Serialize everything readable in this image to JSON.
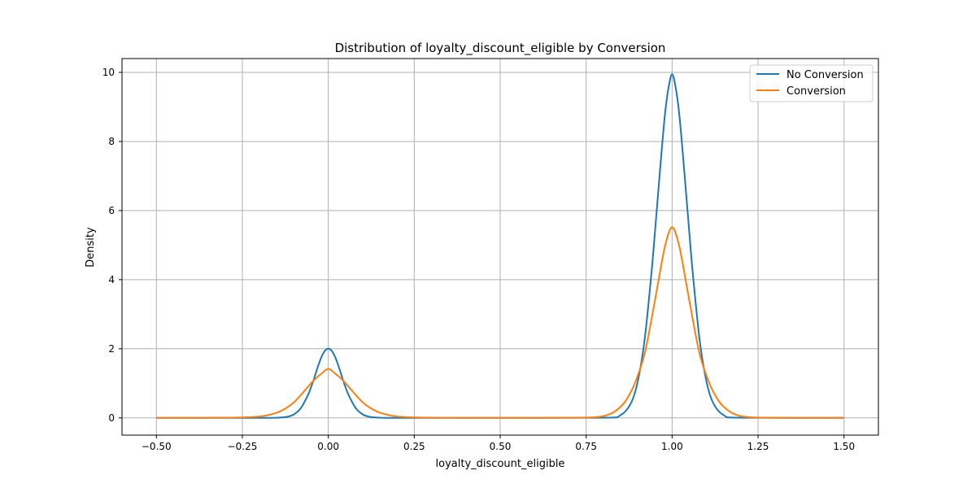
{
  "chart_data": {
    "type": "line",
    "title": "Distribution of loyalty_discount_eligible by Conversion",
    "xlabel": "loyalty_discount_eligible",
    "ylabel": "Density",
    "xlim": [
      -0.6,
      1.6
    ],
    "ylim": [
      -0.5,
      10.4
    ],
    "xticks": [
      -0.5,
      -0.25,
      0.0,
      0.25,
      0.5,
      0.75,
      1.0,
      1.25,
      1.5
    ],
    "xtick_labels": [
      "−0.50",
      "−0.25",
      "0.00",
      "0.25",
      "0.50",
      "0.75",
      "1.00",
      "1.25",
      "1.50"
    ],
    "yticks": [
      0,
      2,
      4,
      6,
      8,
      10
    ],
    "ytick_labels": [
      "0",
      "2",
      "4",
      "6",
      "8",
      "10"
    ],
    "grid": true,
    "legend_position": "top-right",
    "series": [
      {
        "name": "No Conversion",
        "color": "#1f77b4",
        "x": [
          -0.5,
          -0.2,
          -0.15,
          -0.12,
          -0.1,
          -0.08,
          -0.06,
          -0.05,
          -0.04,
          -0.03,
          -0.02,
          -0.01,
          0.0,
          0.01,
          0.02,
          0.03,
          0.04,
          0.05,
          0.06,
          0.08,
          0.1,
          0.12,
          0.15,
          0.2,
          0.5,
          0.8,
          0.85,
          0.88,
          0.9,
          0.92,
          0.94,
          0.95,
          0.96,
          0.97,
          0.98,
          0.99,
          1.0,
          1.01,
          1.02,
          1.03,
          1.04,
          1.05,
          1.06,
          1.08,
          1.1,
          1.12,
          1.15,
          1.2,
          1.5
        ],
        "y": [
          0,
          0,
          0.004,
          0.03,
          0.1,
          0.28,
          0.64,
          0.89,
          1.18,
          1.49,
          1.76,
          1.94,
          2.0,
          1.94,
          1.76,
          1.49,
          1.18,
          0.89,
          0.64,
          0.28,
          0.1,
          0.03,
          0.004,
          0,
          0,
          0.004,
          0.08,
          0.42,
          1.05,
          2.26,
          4.2,
          5.37,
          6.58,
          7.78,
          8.86,
          9.58,
          9.95,
          9.58,
          8.86,
          7.78,
          6.58,
          5.37,
          4.2,
          2.26,
          1.05,
          0.42,
          0.08,
          0.004,
          0
        ]
      },
      {
        "name": "Conversion",
        "color": "#ff7f0e",
        "x": [
          -0.5,
          -0.3,
          -0.2,
          -0.15,
          -0.12,
          -0.1,
          -0.08,
          -0.06,
          -0.04,
          -0.02,
          0.0,
          0.02,
          0.04,
          0.06,
          0.08,
          0.1,
          0.12,
          0.15,
          0.2,
          0.3,
          0.5,
          0.7,
          0.8,
          0.85,
          0.88,
          0.9,
          0.92,
          0.94,
          0.96,
          0.98,
          1.0,
          1.02,
          1.04,
          1.06,
          1.08,
          1.1,
          1.12,
          1.15,
          1.2,
          1.3,
          1.5
        ],
        "y": [
          0,
          0.005,
          0.04,
          0.15,
          0.3,
          0.45,
          0.66,
          0.89,
          1.11,
          1.28,
          1.42,
          1.28,
          1.11,
          0.89,
          0.66,
          0.45,
          0.3,
          0.15,
          0.04,
          0.002,
          0,
          0.002,
          0.05,
          0.32,
          0.75,
          1.22,
          1.85,
          2.85,
          3.95,
          5.0,
          5.52,
          5.0,
          3.95,
          2.85,
          1.85,
          1.22,
          0.75,
          0.32,
          0.05,
          0.002,
          0
        ]
      }
    ]
  }
}
